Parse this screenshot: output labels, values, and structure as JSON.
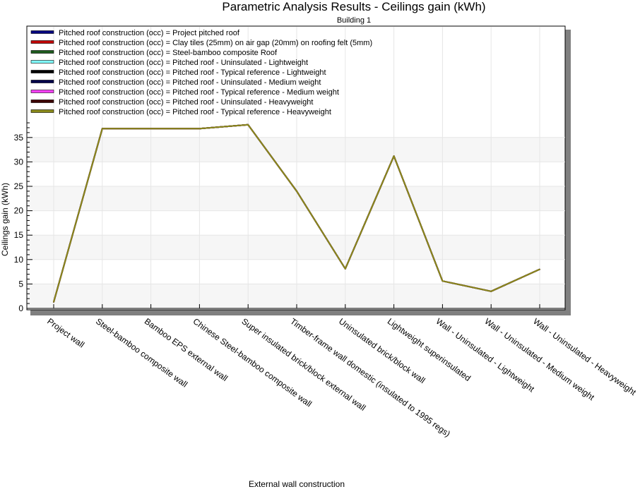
{
  "chart_data": {
    "type": "line",
    "title": "Parametric Analysis Results -  Ceilings gain (kWh)",
    "subtitle": "Building 1",
    "xlabel": "External wall construction",
    "ylabel": "Ceilings gain (kWh)",
    "ylim": [
      0,
      39
    ],
    "yticks": [
      0,
      5,
      10,
      15,
      20,
      25,
      30,
      35
    ],
    "grid": true,
    "legend_position": "top",
    "categories": [
      "Project wall",
      "Steel-bamboo composite wall",
      "Bamboo EPS external wall",
      "Chinese Steel-bamboo composite wall",
      "Super insulated brick/block external wall",
      "Timber-frame wall domestic (insulated to 1995 regs)",
      "Uninsulated brick/block wall",
      "Lightweight superinsulated",
      "Wall - Uninsulated - Lightweight",
      "Wall - Uninsulated - Medium weight",
      "Wall - Uninsulated - Heavyweight"
    ],
    "series": [
      {
        "name": "Pitched roof construction (occ) = Project pitched roof",
        "color": "#00007f",
        "values": [
          1.3,
          36.8,
          36.8,
          36.8,
          37.6,
          24.0,
          8.1,
          31.2,
          5.6,
          3.5,
          8.0
        ]
      },
      {
        "name": "Pitched roof construction (occ) = Clay tiles (25mm) on air gap (20mm) on roofing felt (5mm)",
        "color": "#c00000",
        "values": [
          1.3,
          36.8,
          36.8,
          36.8,
          37.6,
          24.0,
          8.1,
          31.2,
          5.6,
          3.5,
          8.0
        ]
      },
      {
        "name": "Pitched roof construction (occ) = Steel-bamboo composite Roof",
        "color": "#1e5a1e",
        "values": [
          1.3,
          36.8,
          36.8,
          36.8,
          37.6,
          24.0,
          8.1,
          31.2,
          5.6,
          3.5,
          8.0
        ]
      },
      {
        "name": "Pitched roof construction (occ) = Pitched roof - Uninsulated - Lightweight",
        "color": "#7fffff",
        "values": [
          1.3,
          36.8,
          36.8,
          36.8,
          37.6,
          24.0,
          8.1,
          31.2,
          5.6,
          3.5,
          8.0
        ]
      },
      {
        "name": "Pitched roof construction (occ) = Pitched roof - Typical reference - Lightweight",
        "color": "#000000",
        "values": [
          1.3,
          36.8,
          36.8,
          36.8,
          37.6,
          24.0,
          8.1,
          31.2,
          5.6,
          3.5,
          8.0
        ]
      },
      {
        "name": "Pitched roof construction (occ) = Pitched roof - Uninsulated - Medium weight",
        "color": "#00004a",
        "values": [
          1.3,
          36.8,
          36.8,
          36.8,
          37.6,
          24.0,
          8.1,
          31.2,
          5.6,
          3.5,
          8.0
        ]
      },
      {
        "name": "Pitched roof construction (occ) = Pitched roof - Typical reference - Medium weight",
        "color": "#ff40ff",
        "values": [
          1.3,
          36.8,
          36.8,
          36.8,
          37.6,
          24.0,
          8.1,
          31.2,
          5.6,
          3.5,
          8.0
        ]
      },
      {
        "name": "Pitched roof construction (occ) = Pitched roof - Uninsulated - Heavyweight",
        "color": "#3c0000",
        "values": [
          1.3,
          36.8,
          36.8,
          36.8,
          37.6,
          24.0,
          8.1,
          31.2,
          5.6,
          3.5,
          8.0
        ]
      },
      {
        "name": "Pitched roof construction (occ) = Pitched roof - Typical reference - Heavyweight",
        "color": "#8a8a1a",
        "values": [
          1.3,
          36.8,
          36.8,
          36.8,
          37.6,
          24.0,
          8.1,
          31.2,
          5.6,
          3.5,
          8.0
        ]
      }
    ]
  }
}
